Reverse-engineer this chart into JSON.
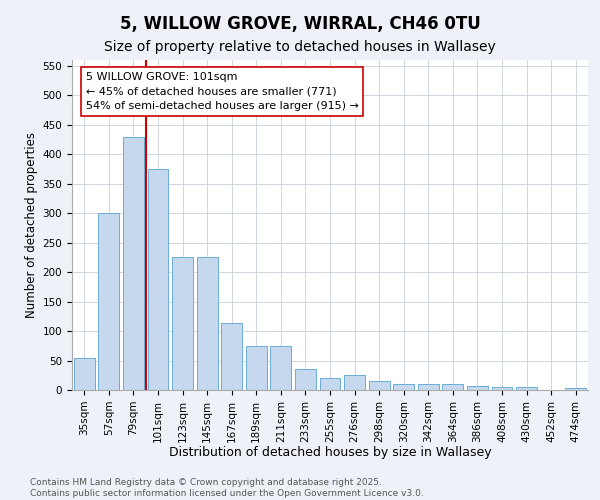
{
  "title": "5, WILLOW GROVE, WIRRAL, CH46 0TU",
  "subtitle": "Size of property relative to detached houses in Wallasey",
  "xlabel": "Distribution of detached houses by size in Wallasey",
  "ylabel": "Number of detached properties",
  "categories": [
    "35sqm",
    "57sqm",
    "79sqm",
    "101sqm",
    "123sqm",
    "145sqm",
    "167sqm",
    "189sqm",
    "211sqm",
    "233sqm",
    "255sqm",
    "276sqm",
    "298sqm",
    "320sqm",
    "342sqm",
    "364sqm",
    "386sqm",
    "408sqm",
    "430sqm",
    "452sqm",
    "474sqm"
  ],
  "values": [
    55,
    300,
    430,
    375,
    225,
    225,
    113,
    75,
    75,
    35,
    20,
    25,
    15,
    10,
    10,
    10,
    7,
    5,
    5,
    0,
    3
  ],
  "bar_color": "#c5d8ed",
  "bar_edge_color": "#6aaed6",
  "red_line_index": 3,
  "annotation_line1": "5 WILLOW GROVE: 101sqm",
  "annotation_line2": "← 45% of detached houses are smaller (771)",
  "annotation_line3": "54% of semi-detached houses are larger (915) →",
  "annotation_box_color": "#ffffff",
  "annotation_box_edge": "#cc0000",
  "red_line_color": "#cc0000",
  "ylim": [
    0,
    560
  ],
  "yticks": [
    0,
    50,
    100,
    150,
    200,
    250,
    300,
    350,
    400,
    450,
    500,
    550
  ],
  "title_fontsize": 12,
  "subtitle_fontsize": 10,
  "xlabel_fontsize": 9,
  "ylabel_fontsize": 8.5,
  "tick_fontsize": 7.5,
  "annotation_fontsize": 8,
  "footer_line1": "Contains HM Land Registry data © Crown copyright and database right 2025.",
  "footer_line2": "Contains public sector information licensed under the Open Government Licence v3.0.",
  "footer_fontsize": 6.5,
  "background_color": "#eef2f8",
  "plot_background_color": "#ffffff",
  "grid_color": "#c8d0dc"
}
